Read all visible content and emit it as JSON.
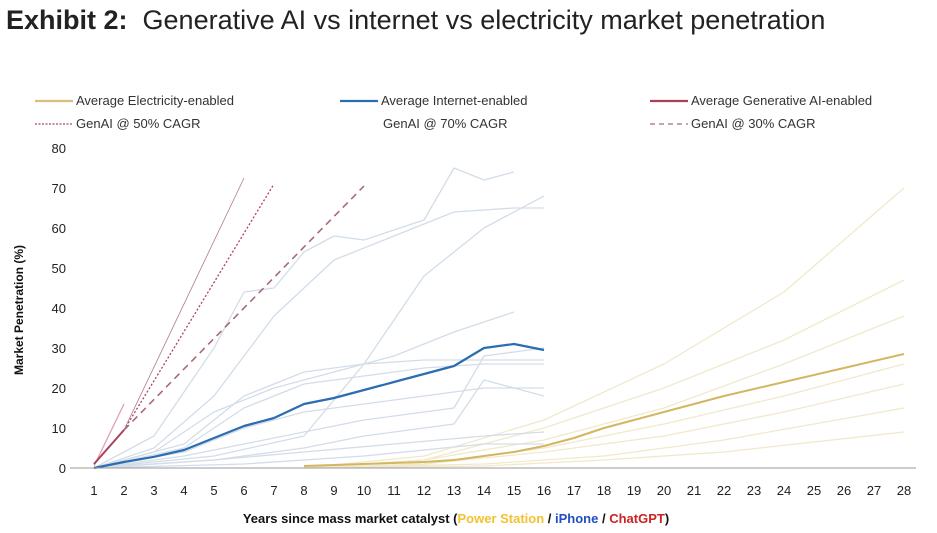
{
  "title": {
    "prefix": "Exhibit 2:",
    "text": "Generative AI vs internet vs electricity market penetration"
  },
  "chart_data": {
    "type": "line",
    "title": "Exhibit 2: Generative AI vs internet vs electricity market penetration",
    "ylabel": "Market Penetration (%)",
    "xlabel": {
      "main": "Years since mass market catalyst (",
      "parts": [
        {
          "text": "Power Station",
          "color": "#f2c230"
        },
        {
          "text": " / ",
          "color": "#111111"
        },
        {
          "text": "iPhone",
          "color": "#1f4fc4"
        },
        {
          "text": " / ",
          "color": "#111111"
        },
        {
          "text": "ChatGPT",
          "color": "#cc2222"
        }
      ],
      "close": ")"
    },
    "xlim": [
      1,
      28
    ],
    "ylim": [
      0,
      80
    ],
    "xticks": [
      1,
      2,
      3,
      4,
      5,
      6,
      7,
      8,
      9,
      10,
      11,
      12,
      13,
      14,
      15,
      16,
      17,
      18,
      19,
      20,
      21,
      22,
      23,
      24,
      25,
      26,
      27,
      28
    ],
    "yticks": [
      0,
      10,
      20,
      30,
      40,
      50,
      60,
      70,
      80
    ],
    "grid": false,
    "legend_placement": "top",
    "legend": [
      {
        "label": "Average Electricity-enabled",
        "color": "#d9bf7a",
        "style": "solid"
      },
      {
        "label": "Average Internet-enabled",
        "color": "#2a6db0",
        "style": "solid"
      },
      {
        "label": "Average Generative AI-enabled",
        "color": "#a8425a",
        "style": "solid"
      },
      {
        "label": "GenAI @ 50% CAGR",
        "color": "#b0405e",
        "style": "dotted"
      },
      {
        "label": "GenAI @ 70% CAGR",
        "color": "#b07a88",
        "style": "none"
      },
      {
        "label": "GenAI @ 30% CAGR",
        "color": "#a86a7a",
        "style": "dashed"
      }
    ],
    "series": [
      {
        "name": "Average Electricity-enabled",
        "color": "#d4b660",
        "width": 2,
        "dash": "",
        "x": [
          8,
          10,
          12,
          13,
          14,
          15,
          16,
          17,
          18,
          19,
          20,
          22,
          24,
          26,
          28
        ],
        "y": [
          0.5,
          1,
          1.5,
          2,
          3,
          4,
          5.5,
          7.5,
          10,
          12,
          14,
          18,
          21.5,
          25,
          28.5
        ]
      },
      {
        "name": "Average Internet-enabled",
        "color": "#2a6db0",
        "width": 2.2,
        "dash": "",
        "x": [
          1,
          2,
          3,
          4,
          5,
          6,
          7,
          8,
          9,
          10,
          11,
          12,
          13,
          14,
          15,
          16
        ],
        "y": [
          0,
          1.5,
          2.8,
          4.5,
          7.5,
          10.5,
          12.5,
          16,
          17.5,
          19.5,
          21.5,
          23.5,
          25.5,
          30,
          31,
          29.5
        ]
      },
      {
        "name": "Average Generative AI-enabled",
        "color": "#a8425a",
        "width": 2,
        "dash": "",
        "x": [
          1,
          2
        ],
        "y": [
          1,
          9.5
        ]
      },
      {
        "name": "GenAI @ 50% CAGR",
        "color": "#b0405e",
        "width": 1.3,
        "dash": "2,2",
        "x": [
          2,
          7
        ],
        "y": [
          9.5,
          71
        ]
      },
      {
        "name": "GenAI @ 70% CAGR",
        "color": "#b07a88",
        "width": 0.8,
        "dash": "",
        "x": [
          2,
          6
        ],
        "y": [
          9.5,
          72.5
        ]
      },
      {
        "name": "GenAI @ 30% CAGR",
        "color": "#a86a7a",
        "width": 1.6,
        "dash": "7,5",
        "x": [
          2,
          10
        ],
        "y": [
          9.5,
          70.5
        ]
      }
    ],
    "background_series": {
      "internet_color": "#d3dde8",
      "electricity_color": "#f1e9cc",
      "genai_color": "#e2a0b0",
      "internet": [
        {
          "x": [
            1,
            3,
            5,
            6,
            7,
            8,
            9,
            10,
            12,
            13,
            14,
            15
          ],
          "y": [
            0,
            8,
            30,
            44,
            45,
            54,
            58,
            57,
            62,
            75,
            72,
            74
          ]
        },
        {
          "x": [
            1,
            3,
            5,
            7,
            9,
            11,
            13,
            15,
            16
          ],
          "y": [
            0,
            5,
            18,
            38,
            52,
            58,
            64,
            65,
            65
          ]
        },
        {
          "x": [
            1,
            5,
            8,
            10,
            12,
            14,
            16
          ],
          "y": [
            0,
            3,
            8,
            26,
            48,
            60,
            68
          ]
        },
        {
          "x": [
            1,
            3,
            5,
            7,
            9,
            11,
            13,
            15
          ],
          "y": [
            0,
            4,
            14,
            20,
            24,
            28,
            34,
            39
          ]
        },
        {
          "x": [
            1,
            4,
            6,
            8,
            10,
            12,
            14,
            16
          ],
          "y": [
            0,
            6,
            18,
            24,
            26,
            27,
            27,
            27
          ]
        },
        {
          "x": [
            1,
            4,
            6,
            8,
            10,
            12,
            14,
            16
          ],
          "y": [
            0,
            5,
            15,
            21,
            23,
            25,
            26,
            26
          ]
        },
        {
          "x": [
            1,
            4,
            6,
            8,
            10,
            12,
            14,
            16
          ],
          "y": [
            0,
            4,
            10,
            14,
            16,
            18,
            20,
            20
          ]
        },
        {
          "x": [
            1,
            4,
            6,
            8,
            10,
            12,
            13,
            14,
            16
          ],
          "y": [
            0,
            3,
            6,
            9,
            12,
            14,
            15,
            28,
            30
          ]
        },
        {
          "x": [
            1,
            5,
            8,
            10,
            12,
            13,
            14,
            16
          ],
          "y": [
            0,
            2,
            5,
            8,
            10,
            11,
            22,
            18
          ]
        },
        {
          "x": [
            1,
            5,
            8,
            11,
            14,
            16
          ],
          "y": [
            0,
            2,
            4,
            6,
            8,
            9
          ]
        },
        {
          "x": [
            1,
            6,
            10,
            14,
            16
          ],
          "y": [
            0,
            1,
            3,
            6,
            6
          ]
        }
      ],
      "electricity": [
        {
          "x": [
            8,
            12,
            16,
            20,
            24,
            28
          ],
          "y": [
            0,
            3,
            12,
            26,
            44,
            70
          ]
        },
        {
          "x": [
            8,
            12,
            16,
            20,
            24,
            28
          ],
          "y": [
            0,
            2,
            10,
            20,
            32,
            47
          ]
        },
        {
          "x": [
            8,
            12,
            16,
            20,
            24,
            28
          ],
          "y": [
            0,
            2,
            7,
            15,
            26,
            38
          ]
        },
        {
          "x": [
            8,
            12,
            16,
            20,
            24,
            28
          ],
          "y": [
            0,
            1,
            5,
            11,
            18,
            26
          ]
        },
        {
          "x": [
            8,
            12,
            16,
            20,
            24,
            28
          ],
          "y": [
            0,
            1,
            4,
            8,
            14,
            21
          ]
        },
        {
          "x": [
            8,
            14,
            18,
            22,
            28
          ],
          "y": [
            0,
            1,
            3,
            7,
            15
          ]
        },
        {
          "x": [
            8,
            14,
            18,
            22,
            28
          ],
          "y": [
            0,
            0.5,
            2,
            4,
            9
          ]
        }
      ],
      "genai": [
        {
          "x": [
            1,
            2
          ],
          "y": [
            0.5,
            16
          ]
        }
      ]
    }
  }
}
